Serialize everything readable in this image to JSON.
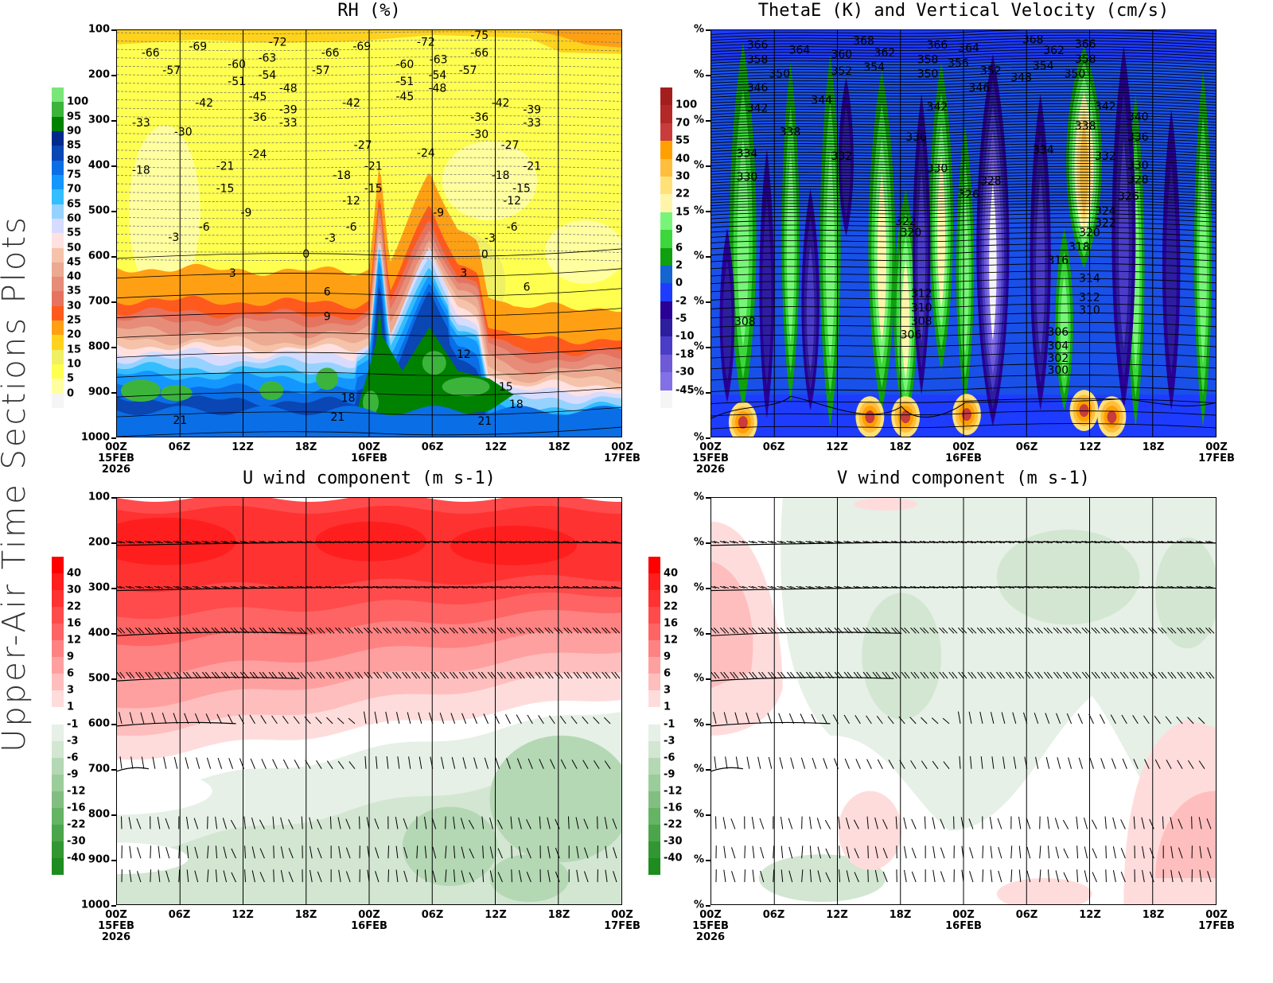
{
  "side_title": "Upper-Air Time Sections Plots",
  "x_axis": {
    "ticks": [
      "00Z",
      "06Z",
      "12Z",
      "18Z",
      "00Z",
      "06Z",
      "12Z",
      "18Z",
      "00Z"
    ],
    "dates": [
      "15FEB",
      "",
      "",
      "",
      "16FEB",
      "",
      "",
      "",
      "17FEB"
    ],
    "year": "2026"
  },
  "chart_data": [
    {
      "id": "rh",
      "type": "contour",
      "title": "RH (%)",
      "xlim": [
        "15FEB 00:00Z",
        "17FEB 00:00Z"
      ],
      "ylim": [
        1000,
        100
      ],
      "y_ticks": [
        "100",
        "200",
        "300",
        "400",
        "500",
        "600",
        "700",
        "800",
        "900",
        "1000"
      ],
      "fill_variable": "RH (%)",
      "overlay": "temperature contours (dashed below 0)",
      "colorbar": {
        "labels": [
          "100",
          "95",
          "90",
          "85",
          "80",
          "75",
          "70",
          "65",
          "60",
          "55",
          "50",
          "45",
          "40",
          "35",
          "30",
          "25",
          "20",
          "15",
          "10",
          "5",
          "0"
        ],
        "colors": [
          "#78e678",
          "#3cb43c",
          "#008200",
          "#002a8c",
          "#0a46b4",
          "#0a6ee6",
          "#1496ff",
          "#32beff",
          "#96d2ff",
          "#d7dcff",
          "#ffe1e1",
          "#f5c3aa",
          "#ebaa91",
          "#e68c78",
          "#e6735f",
          "#ff5a1e",
          "#ffa014",
          "#ffd21e",
          "#f0f064",
          "#ffff50",
          "#ffffa0",
          "#f5f5f5"
        ]
      },
      "contour_labels": [
        [
          -66,
          "15FEB 03:12Z",
          149
        ],
        [
          -69,
          "15FEB 07:42Z",
          135
        ],
        [
          -72,
          "15FEB 15:18Z",
          126
        ],
        [
          -66,
          "15FEB 20:18Z",
          149
        ],
        [
          -69,
          "15FEB 23:18Z",
          135
        ],
        [
          -72,
          "16FEB 05:24Z",
          126
        ],
        [
          -75,
          "16FEB 10:30Z",
          111
        ],
        [
          -66,
          "16FEB 10:30Z",
          149
        ],
        [
          -57,
          "15FEB 05:12Z",
          188
        ],
        [
          -60,
          "15FEB 11:24Z",
          175
        ],
        [
          -63,
          "15FEB 14:18Z",
          161
        ],
        [
          -57,
          "15FEB 19:24Z",
          188
        ],
        [
          -60,
          "16FEB 03:24Z",
          175
        ],
        [
          -63,
          "16FEB 06:36Z",
          164
        ],
        [
          -57,
          "16FEB 09:24Z",
          188
        ],
        [
          -51,
          "15FEB 11:24Z",
          213
        ],
        [
          -54,
          "15FEB 14:18Z",
          199
        ],
        [
          -48,
          "15FEB 16:18Z",
          228
        ],
        [
          -51,
          "16FEB 03:24Z",
          213
        ],
        [
          -54,
          "16FEB 06:30Z",
          199
        ],
        [
          -48,
          "16FEB 06:30Z",
          228
        ],
        [
          -45,
          "15FEB 13:24Z",
          246
        ],
        [
          -45,
          "16FEB 03:24Z",
          246
        ],
        [
          -42,
          "15FEB 08:18Z",
          260
        ],
        [
          -42,
          "15FEB 22:18Z",
          260
        ],
        [
          -42,
          "16FEB 12:30Z",
          260
        ],
        [
          -39,
          "15FEB 16:18Z",
          275
        ],
        [
          -39,
          "16FEB 15:30Z",
          275
        ],
        [
          -36,
          "15FEB 13:24Z",
          292
        ],
        [
          -36,
          "16FEB 10:30Z",
          292
        ],
        [
          -33,
          "15FEB 02:18Z",
          304
        ],
        [
          -33,
          "15FEB 16:18Z",
          304
        ],
        [
          -33,
          "16FEB 15:30Z",
          304
        ],
        [
          -30,
          "15FEB 06:18Z",
          325
        ],
        [
          -30,
          "16FEB 10:30Z",
          330
        ],
        [
          -27,
          "15FEB 23:24Z",
          354
        ],
        [
          -27,
          "16FEB 13:24Z",
          354
        ],
        [
          -24,
          "15FEB 13:24Z",
          374
        ],
        [
          -24,
          "16FEB 05:24Z",
          371
        ],
        [
          -21,
          "15FEB 10:18Z",
          400
        ],
        [
          -21,
          "16FEB 00:24Z",
          400
        ],
        [
          -21,
          "16FEB 15:30Z",
          400
        ],
        [
          -18,
          "15FEB 02:18Z",
          409
        ],
        [
          -18,
          "15FEB 21:24Z",
          421
        ],
        [
          -18,
          "16FEB 12:30Z",
          421
        ],
        [
          -15,
          "15FEB 10:18Z",
          450
        ],
        [
          -15,
          "16FEB 00:24Z",
          450
        ],
        [
          -15,
          "16FEB 14:30Z",
          450
        ],
        [
          -12,
          "15FEB 22:18Z",
          477
        ],
        [
          -12,
          "16FEB 13:36Z",
          477
        ],
        [
          -9,
          "15FEB 12:18Z",
          503
        ],
        [
          -9,
          "16FEB 06:36Z",
          503
        ],
        [
          -6,
          "15FEB 08:18Z",
          535
        ],
        [
          -6,
          "15FEB 22:18Z",
          535
        ],
        [
          -6,
          "16FEB 13:36Z",
          535
        ],
        [
          -3,
          "15FEB 05:24Z",
          558
        ],
        [
          -3,
          "15FEB 20:18Z",
          560
        ],
        [
          -3,
          "16FEB 11:30Z",
          560
        ],
        [
          0,
          "15FEB 18:00Z",
          595
        ],
        [
          0,
          "16FEB 11:00Z",
          596
        ],
        [
          3,
          "15FEB 11:00Z",
          637
        ],
        [
          3,
          "16FEB 09:00Z",
          637
        ],
        [
          6,
          "15FEB 20:00Z",
          679
        ],
        [
          6,
          "16FEB 15:00Z",
          668
        ],
        [
          9,
          "15FEB 20:00Z",
          733
        ],
        [
          12,
          "16FEB 09:00Z",
          817
        ],
        [
          15,
          "16FEB 13:00Z",
          889
        ],
        [
          18,
          "15FEB 22:00Z",
          914
        ],
        [
          18,
          "16FEB 14:00Z",
          928
        ],
        [
          21,
          "15FEB 06:00Z",
          963
        ],
        [
          21,
          "15FEB 21:00Z",
          956
        ],
        [
          21,
          "16FEB 11:00Z",
          965
        ]
      ]
    },
    {
      "id": "thetae",
      "type": "contour",
      "title": "ThetaE (K) and Vertical Velocity (cm/s)",
      "xlim": [
        "15FEB 00:00Z",
        "17FEB 00:00Z"
      ],
      "ylim": [
        1000,
        100
      ],
      "y_ticks": [
        "%",
        "%",
        "%",
        "%",
        "%",
        "%",
        "%",
        "%",
        "%",
        "%"
      ],
      "fill_variable": "Vertical Velocity (cm/s)",
      "overlay": "ThetaE (K) contours",
      "colorbar": {
        "labels": [
          "100",
          "70",
          "55",
          "40",
          "30",
          "22",
          "15",
          "9",
          "6",
          "2",
          "0",
          "-2",
          "-5",
          "-10",
          "-18",
          "-30",
          "-45"
        ],
        "colors": [
          "#a51e1e",
          "#b42828",
          "#c83c3c",
          "#ffa000",
          "#ffbe3c",
          "#ffe178",
          "#fff5aa",
          "#78f578",
          "#3cd73c",
          "#0fa00f",
          "#1464d2",
          "#1e3cff",
          "#280096",
          "#2d1ea0",
          "#4b3cc8",
          "#6e5ad7",
          "#8270e6",
          "#f5f5f5"
        ]
      },
      "contour_labels": [
        [
          366,
          "15FEB 04:24Z",
          132
        ],
        [
          364,
          "15FEB 08:24Z",
          143
        ],
        [
          368,
          "15FEB 14:30Z",
          123
        ],
        [
          366,
          "15FEB 21:30Z",
          132
        ],
        [
          364,
          "16FEB 00:30Z",
          139
        ],
        [
          368,
          "16FEB 06:36Z",
          120
        ],
        [
          366,
          "16FEB 11:36Z",
          130
        ],
        [
          358,
          "15FEB 04:24Z",
          164
        ],
        [
          360,
          "15FEB 12:24Z",
          153
        ],
        [
          362,
          "15FEB 16:30Z",
          149
        ],
        [
          358,
          "15FEB 20:36Z",
          164
        ],
        [
          356,
          "15FEB 23:30Z",
          172
        ],
        [
          362,
          "16FEB 08:36Z",
          144
        ],
        [
          358,
          "16FEB 11:36Z",
          163
        ],
        [
          350,
          "15FEB 06:30Z",
          196
        ],
        [
          352,
          "15FEB 12:24Z",
          190
        ],
        [
          354,
          "15FEB 15:30Z",
          181
        ],
        [
          350,
          "15FEB 20:36Z",
          196
        ],
        [
          352,
          "16FEB 02:36Z",
          189
        ],
        [
          348,
          "16FEB 05:30Z",
          204
        ],
        [
          354,
          "16FEB 07:36Z",
          178
        ],
        [
          350,
          "16FEB 10:36Z",
          196
        ],
        [
          346,
          "15FEB 04:24Z",
          227
        ],
        [
          346,
          "16FEB 01:30Z",
          227
        ],
        [
          344,
          "15FEB 10:30Z",
          254
        ],
        [
          342,
          "15FEB 04:24Z",
          272
        ],
        [
          342,
          "15FEB 21:30Z",
          269
        ],
        [
          342,
          "16FEB 13:30Z",
          268
        ],
        [
          340,
          "16FEB 16:36Z",
          291
        ],
        [
          338,
          "15FEB 07:30Z",
          325
        ],
        [
          338,
          "16FEB 11:36Z",
          311
        ],
        [
          336,
          "15FEB 19:30Z",
          336
        ],
        [
          336,
          "16FEB 16:36Z",
          336
        ],
        [
          334,
          "15FEB 03:24Z",
          372
        ],
        [
          334,
          "16FEB 07:36Z",
          364
        ],
        [
          332,
          "15FEB 12:24Z",
          378
        ],
        [
          332,
          "16FEB 13:30Z",
          378
        ],
        [
          330,
          "15FEB 03:24Z",
          424
        ],
        [
          330,
          "15FEB 21:30Z",
          406
        ],
        [
          330,
          "16FEB 16:36Z",
          399
        ],
        [
          328,
          "16FEB 02:36Z",
          433
        ],
        [
          328,
          "16FEB 16:36Z",
          430
        ],
        [
          326,
          "16FEB 00:30Z",
          463
        ],
        [
          326,
          "16FEB 15:42Z",
          467
        ],
        [
          324,
          "16FEB 13:30Z",
          500
        ],
        [
          322,
          "15FEB 18:30Z",
          523
        ],
        [
          322,
          "16FEB 13:30Z",
          526
        ],
        [
          320,
          "15FEB 19:00Z",
          547
        ],
        [
          320,
          "16FEB 12:00Z",
          547
        ],
        [
          318,
          "16FEB 11:00Z",
          579
        ],
        [
          316,
          "16FEB 09:00Z",
          609
        ],
        [
          314,
          "16FEB 12:00Z",
          649
        ],
        [
          312,
          "15FEB 20:00Z",
          682
        ],
        [
          312,
          "16FEB 12:00Z",
          691
        ],
        [
          310,
          "15FEB 20:00Z",
          714
        ],
        [
          310,
          "16FEB 12:00Z",
          719
        ],
        [
          308,
          "15FEB 03:12Z",
          745
        ],
        [
          308,
          "15FEB 20:00Z",
          744
        ],
        [
          306,
          "15FEB 19:00Z",
          774
        ],
        [
          306,
          "16FEB 09:00Z",
          768
        ],
        [
          304,
          "16FEB 09:00Z",
          798
        ],
        [
          302,
          "16FEB 09:00Z",
          826
        ],
        [
          300,
          "16FEB 09:00Z",
          852
        ]
      ]
    },
    {
      "id": "u",
      "type": "contour",
      "title": "U wind component (m s-1)",
      "xlim": [
        "15FEB 00:00Z",
        "17FEB 00:00Z"
      ],
      "ylim": [
        1000,
        100
      ],
      "y_ticks": [
        "100",
        "200",
        "300",
        "400",
        "500",
        "600",
        "700",
        "800",
        "900",
        "1000"
      ],
      "fill_variable": "U wind component (m s-1)",
      "overlay": "wind barbs",
      "colorbar": {
        "labels": [
          "40",
          "30",
          "22",
          "16",
          "12",
          "9",
          "6",
          "3",
          "1",
          "-1",
          "-3",
          "-6",
          "-9",
          "-12",
          "-16",
          "-22",
          "-30",
          "-40"
        ],
        "colors": [
          "#ff0000",
          "#ff1e1e",
          "#ff3232",
          "#ff4b4b",
          "#ff6464",
          "#ff8282",
          "#ffa0a0",
          "#ffbebe",
          "#ffdcdc",
          "#ffffff",
          "#e6f0e6",
          "#d2e6d2",
          "#b4d7b4",
          "#9bcd9b",
          "#82be82",
          "#64b464",
          "#4ba54b",
          "#329632",
          "#1e8c1e"
        ]
      },
      "contour_labels": []
    },
    {
      "id": "v",
      "type": "contour",
      "title": "V wind component (m s-1)",
      "xlim": [
        "15FEB 00:00Z",
        "17FEB 00:00Z"
      ],
      "ylim": [
        1000,
        100
      ],
      "y_ticks": [
        "%",
        "%",
        "%",
        "%",
        "%",
        "%",
        "%",
        "%",
        "%",
        "%"
      ],
      "fill_variable": "V wind component (m s-1)",
      "overlay": "wind barbs",
      "colorbar": {
        "labels": [
          "40",
          "30",
          "22",
          "16",
          "12",
          "9",
          "6",
          "3",
          "1",
          "-1",
          "-3",
          "-6",
          "-9",
          "-12",
          "-16",
          "-22",
          "-30",
          "-40"
        ],
        "colors": [
          "#ff0000",
          "#ff1e1e",
          "#ff3232",
          "#ff4b4b",
          "#ff6464",
          "#ff8282",
          "#ffa0a0",
          "#ffbebe",
          "#ffdcdc",
          "#ffffff",
          "#e6f0e6",
          "#d2e6d2",
          "#b4d7b4",
          "#9bcd9b",
          "#82be82",
          "#64b464",
          "#4ba54b",
          "#329632",
          "#1e8c1e"
        ]
      },
      "contour_labels": []
    }
  ]
}
